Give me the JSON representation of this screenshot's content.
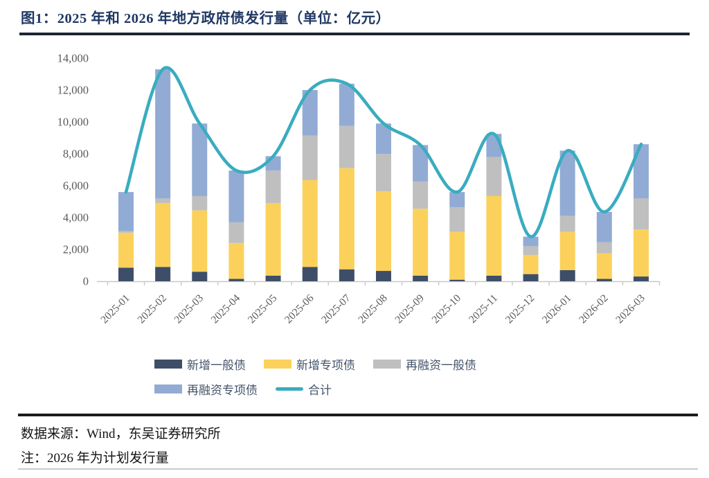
{
  "title": "图1：2025 年和 2026 年地方政府债发行量（单位：亿元）",
  "chart_data": {
    "type": "bar",
    "subtype": "stacked-bars-with-smooth-total-line",
    "unit": "亿元",
    "categories": [
      "2025-01",
      "2025-02",
      "2025-03",
      "2025-04",
      "2025-05",
      "2025-06",
      "2025-07",
      "2025-08",
      "2025-09",
      "2025-10",
      "2025-11",
      "2025-12",
      "2026-01",
      "2026-02",
      "2026-03"
    ],
    "series": [
      {
        "name": "新增一般债",
        "color": "#3E4E68",
        "values": [
          850,
          900,
          600,
          150,
          350,
          900,
          750,
          650,
          350,
          100,
          350,
          450,
          700,
          150,
          300
        ]
      },
      {
        "name": "新增专项债",
        "color": "#FBD15B",
        "values": [
          2200,
          4000,
          3850,
          2250,
          4550,
          5450,
          6350,
          5000,
          4200,
          3000,
          5000,
          1200,
          2400,
          1600,
          2950
        ]
      },
      {
        "name": "再融资一般债",
        "color": "#BFBFBF",
        "values": [
          100,
          300,
          900,
          1300,
          2050,
          2800,
          2650,
          2350,
          1700,
          1550,
          2450,
          550,
          1000,
          700,
          1950
        ]
      },
      {
        "name": "再融资专项债",
        "color": "#92ABD5",
        "values": [
          2450,
          8100,
          4550,
          3250,
          900,
          2850,
          2650,
          1900,
          2300,
          950,
          1450,
          600,
          4100,
          1900,
          3400
        ]
      }
    ],
    "line": {
      "name": "合计",
      "color": "#3AACC0",
      "values": [
        5600,
        13300,
        9900,
        6950,
        7850,
        12000,
        12400,
        9900,
        8550,
        5600,
        9250,
        2800,
        8200,
        4350,
        8600
      ]
    },
    "ylim": [
      0,
      14000
    ],
    "ytick_step": 2000,
    "yticks": [
      "0",
      "2,000",
      "4,000",
      "6,000",
      "8,000",
      "10,000",
      "12,000",
      "14,000"
    ],
    "grid": false,
    "legend_position": "bottom",
    "axis_text_color": "#595959",
    "axis_line_color": "#c8c8c8"
  },
  "footer": {
    "source": "数据来源：Wind，东吴证券研究所",
    "note": "注：2026 年为计划发行量"
  }
}
